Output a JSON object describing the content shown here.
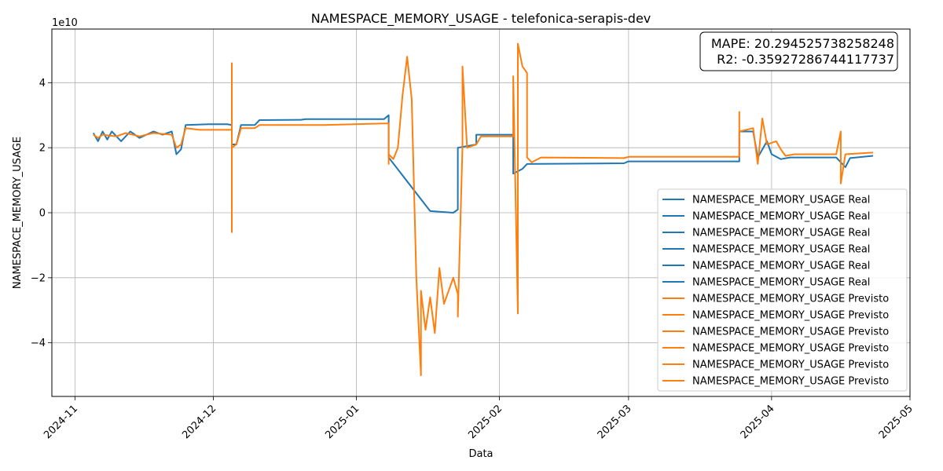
{
  "chart_data": {
    "type": "line",
    "title": "NAMESPACE_MEMORY_USAGE - telefonica-serapis-dev",
    "xlabel": "Data",
    "ylabel": "NAMESPACE_MEMORY_USAGE",
    "y_offset_label": "1e10",
    "xlim": [
      "2024-10-27",
      "2025-05-01"
    ],
    "ylim": [
      -5.65,
      5.65
    ],
    "y_unit_multiplier": 10000000000.0,
    "grid": true,
    "legend_placement": "lower-right",
    "x_ticks": [
      "2024-11",
      "2024-12",
      "2025-01",
      "2025-02",
      "2025-03",
      "2025-04",
      "2025-05"
    ],
    "y_ticks": [
      -4,
      -2,
      0,
      2,
      4
    ],
    "annotation": {
      "mape_text": "MAPE: 20.294525738258248",
      "r2_text": "R2: -0.35927286744117737",
      "placement": "top-right"
    },
    "legend": [
      "NAMESPACE_MEMORY_USAGE Real",
      "NAMESPACE_MEMORY_USAGE Real",
      "NAMESPACE_MEMORY_USAGE Real",
      "NAMESPACE_MEMORY_USAGE Real",
      "NAMESPACE_MEMORY_USAGE Real",
      "NAMESPACE_MEMORY_USAGE Real",
      "NAMESPACE_MEMORY_USAGE Previsto",
      "NAMESPACE_MEMORY_USAGE Previsto",
      "NAMESPACE_MEMORY_USAGE Previsto",
      "NAMESPACE_MEMORY_USAGE Previsto",
      "NAMESPACE_MEMORY_USAGE Previsto",
      "NAMESPACE_MEMORY_USAGE Previsto"
    ],
    "series": [
      {
        "name": "NAMESPACE_MEMORY_USAGE Real",
        "color": "#1f77b4",
        "points": [
          [
            "2024-11-05",
            2.45
          ],
          [
            "2024-11-06",
            2.2
          ],
          [
            "2024-11-07",
            2.5
          ],
          [
            "2024-11-08",
            2.25
          ],
          [
            "2024-11-09",
            2.5
          ],
          [
            "2024-11-11",
            2.2
          ],
          [
            "2024-11-13",
            2.5
          ],
          [
            "2024-11-15",
            2.3
          ],
          [
            "2024-11-18",
            2.5
          ],
          [
            "2024-11-20",
            2.4
          ],
          [
            "2024-11-22",
            2.5
          ],
          [
            "2024-11-23",
            1.8
          ],
          [
            "2024-11-24",
            1.95
          ],
          [
            "2024-11-25",
            2.7
          ],
          [
            "2024-11-30",
            2.72
          ],
          [
            "2024-12-04",
            2.72
          ],
          [
            "2024-12-05",
            2.7
          ],
          [
            "2024-12-05",
            2.1
          ],
          [
            "2024-12-06",
            2.1
          ],
          [
            "2024-12-07",
            2.7
          ],
          [
            "2024-12-10",
            2.7
          ],
          [
            "2024-12-11",
            2.85
          ],
          [
            "2024-12-20",
            2.86
          ],
          [
            "2024-12-21",
            2.88
          ],
          [
            "2025-01-07",
            2.88
          ],
          [
            "2025-01-08",
            3.0
          ],
          [
            "2025-01-08",
            1.7
          ],
          [
            "2025-01-17",
            0.05
          ],
          [
            "2025-01-22",
            0.0
          ],
          [
            "2025-01-23",
            0.1
          ],
          [
            "2025-01-23",
            2.0
          ],
          [
            "2025-01-27",
            2.1
          ],
          [
            "2025-01-27",
            2.4
          ],
          [
            "2025-02-04",
            2.4
          ],
          [
            "2025-02-04",
            1.2
          ],
          [
            "2025-02-06",
            1.35
          ],
          [
            "2025-02-07",
            1.5
          ],
          [
            "2025-02-28",
            1.52
          ],
          [
            "2025-03-01",
            1.58
          ],
          [
            "2025-03-25",
            1.58
          ],
          [
            "2025-03-25",
            2.5
          ],
          [
            "2025-03-28",
            2.5
          ],
          [
            "2025-03-29",
            1.7
          ],
          [
            "2025-03-31",
            2.2
          ],
          [
            "2025-04-01",
            1.8
          ],
          [
            "2025-04-03",
            1.65
          ],
          [
            "2025-04-05",
            1.7
          ],
          [
            "2025-04-15",
            1.7
          ],
          [
            "2025-04-17",
            1.4
          ],
          [
            "2025-04-18",
            1.68
          ],
          [
            "2025-04-23",
            1.75
          ]
        ]
      },
      {
        "name": "NAMESPACE_MEMORY_USAGE Previsto",
        "color": "#ff7f0e",
        "points": [
          [
            "2024-11-05",
            2.4
          ],
          [
            "2024-11-06",
            2.3
          ],
          [
            "2024-11-07",
            2.4
          ],
          [
            "2024-11-10",
            2.35
          ],
          [
            "2024-11-12",
            2.45
          ],
          [
            "2024-11-15",
            2.35
          ],
          [
            "2024-11-18",
            2.45
          ],
          [
            "2024-11-22",
            2.4
          ],
          [
            "2024-11-23",
            2.0
          ],
          [
            "2024-11-24",
            2.1
          ],
          [
            "2024-11-25",
            2.6
          ],
          [
            "2024-11-28",
            2.55
          ],
          [
            "2024-12-04",
            2.55
          ],
          [
            "2024-12-05",
            2.55
          ],
          [
            "2024-12-05",
            4.6
          ],
          [
            "2024-12-05",
            -0.6
          ],
          [
            "2024-12-05",
            2.0
          ],
          [
            "2024-12-06",
            2.1
          ],
          [
            "2024-12-07",
            2.6
          ],
          [
            "2024-12-10",
            2.6
          ],
          [
            "2024-12-11",
            2.7
          ],
          [
            "2024-12-25",
            2.7
          ],
          [
            "2025-01-08",
            2.75
          ],
          [
            "2025-01-08",
            1.5
          ],
          [
            "2025-01-08",
            1.8
          ],
          [
            "2025-01-09",
            1.65
          ],
          [
            "2025-01-10",
            2.0
          ],
          [
            "2025-01-11",
            3.6
          ],
          [
            "2025-01-12",
            4.8
          ],
          [
            "2025-01-13",
            3.5
          ],
          [
            "2025-01-14",
            -2.0
          ],
          [
            "2025-01-15",
            -5.0
          ],
          [
            "2025-01-15",
            -2.4
          ],
          [
            "2025-01-16",
            -3.6
          ],
          [
            "2025-01-17",
            -2.6
          ],
          [
            "2025-01-18",
            -3.7
          ],
          [
            "2025-01-19",
            -1.7
          ],
          [
            "2025-01-20",
            -2.8
          ],
          [
            "2025-01-21",
            -2.4
          ],
          [
            "2025-01-22",
            -2.0
          ],
          [
            "2025-01-23",
            -2.5
          ],
          [
            "2025-01-23",
            -3.2
          ],
          [
            "2025-01-24",
            2.0
          ],
          [
            "2025-01-24",
            4.5
          ],
          [
            "2025-01-25",
            2.0
          ],
          [
            "2025-01-27",
            2.1
          ],
          [
            "2025-01-28",
            2.35
          ],
          [
            "2025-02-04",
            2.35
          ],
          [
            "2025-02-04",
            4.2
          ],
          [
            "2025-02-05",
            -3.1
          ],
          [
            "2025-02-05",
            5.2
          ],
          [
            "2025-02-06",
            4.5
          ],
          [
            "2025-02-07",
            4.3
          ],
          [
            "2025-02-07",
            1.7
          ],
          [
            "2025-02-08",
            1.55
          ],
          [
            "2025-02-10",
            1.7
          ],
          [
            "2025-02-28",
            1.68
          ],
          [
            "2025-03-01",
            1.72
          ],
          [
            "2025-03-25",
            1.72
          ],
          [
            "2025-03-25",
            3.1
          ],
          [
            "2025-03-25",
            2.5
          ],
          [
            "2025-03-28",
            2.6
          ],
          [
            "2025-03-29",
            1.5
          ],
          [
            "2025-03-30",
            2.9
          ],
          [
            "2025-03-31",
            2.1
          ],
          [
            "2025-04-02",
            2.2
          ],
          [
            "2025-04-03",
            1.95
          ],
          [
            "2025-04-04",
            1.75
          ],
          [
            "2025-04-06",
            1.8
          ],
          [
            "2025-04-15",
            1.8
          ],
          [
            "2025-04-16",
            2.5
          ],
          [
            "2025-04-16",
            0.9
          ],
          [
            "2025-04-17",
            1.8
          ],
          [
            "2025-04-23",
            1.85
          ]
        ]
      }
    ]
  }
}
